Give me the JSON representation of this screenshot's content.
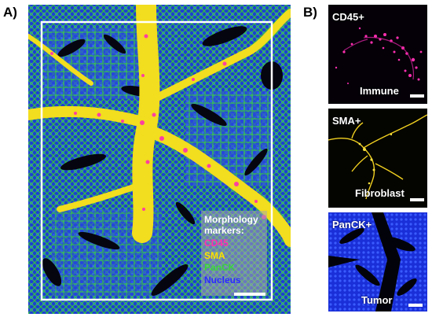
{
  "panels": {
    "a_label": "A)",
    "b_label": "B)"
  },
  "legend": {
    "title_line1": "Morphology",
    "title_line2": "markers:",
    "items": [
      {
        "label": "CD45",
        "color": "#ff2fb0"
      },
      {
        "label": "SMA",
        "color": "#ffe000"
      },
      {
        "label": "PanCK",
        "color": "#39d639"
      },
      {
        "label": "Nucleus",
        "color": "#2a2cff"
      }
    ]
  },
  "subpanels": [
    {
      "marker": "CD45+",
      "cell_type": "Immune",
      "color": "#ff2fb0"
    },
    {
      "marker": "SMA+",
      "cell_type": "Fibroblast",
      "color": "#f0d020"
    },
    {
      "marker": "PanCK+",
      "cell_type": "Tumor",
      "color": "#2a4cff"
    }
  ]
}
